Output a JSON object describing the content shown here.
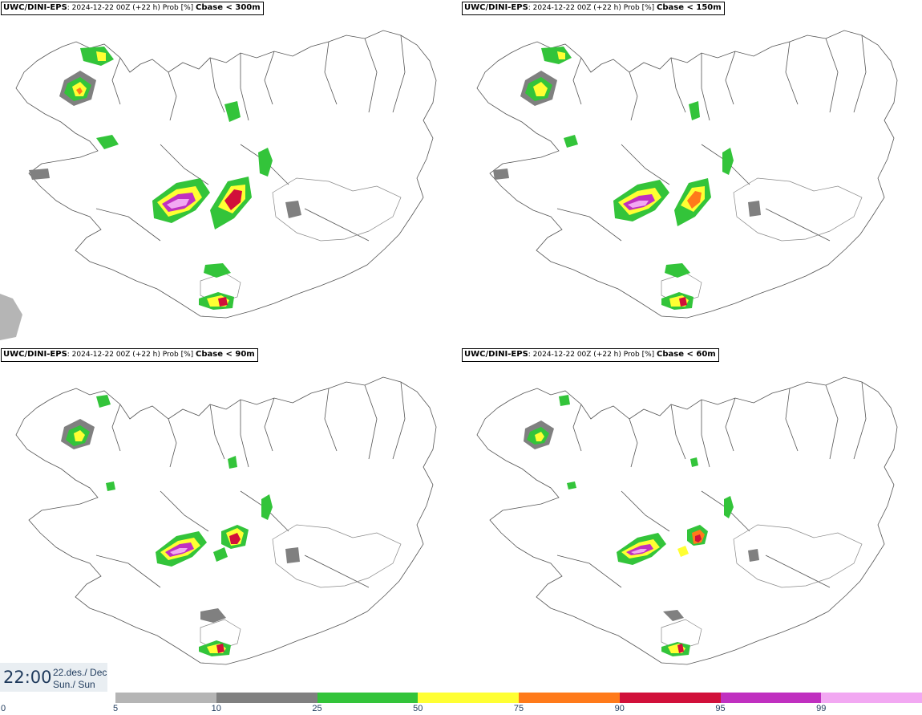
{
  "panels": [
    {
      "model": "UWC/DINI-EPS",
      "info": ": 2024-12-22 00Z (+22 h) Prob [%]",
      "threshold": "Cbase < 300m"
    },
    {
      "model": "UWC/DINI-EPS",
      "info": ": 2024-12-22 00Z (+22 h) Prob [%]",
      "threshold": "Cbase < 150m"
    },
    {
      "model": "UWC/DINI-EPS",
      "info": ": 2024-12-22 00Z (+22 h) Prob [%]",
      "threshold": "Cbase < 90m"
    },
    {
      "model": "UWC/DINI-EPS",
      "info": ": 2024-12-22 00Z (+22 h) Prob [%]",
      "threshold": "Cbase < 60m"
    }
  ],
  "valid_time": {
    "time": "22:00",
    "date_line1": "22.des./ Dec",
    "date_line2": "Sun./ Sun"
  },
  "legend": {
    "ticks": [
      "0",
      "5",
      "10",
      "25",
      "50",
      "75",
      "90",
      "95",
      "99"
    ],
    "colors": [
      "#b5b5b5",
      "#808080",
      "#33c43a",
      "#ffff33",
      "#ff7a1a",
      "#d1103a",
      "#c030c0",
      "#f2a8f2"
    ]
  }
}
